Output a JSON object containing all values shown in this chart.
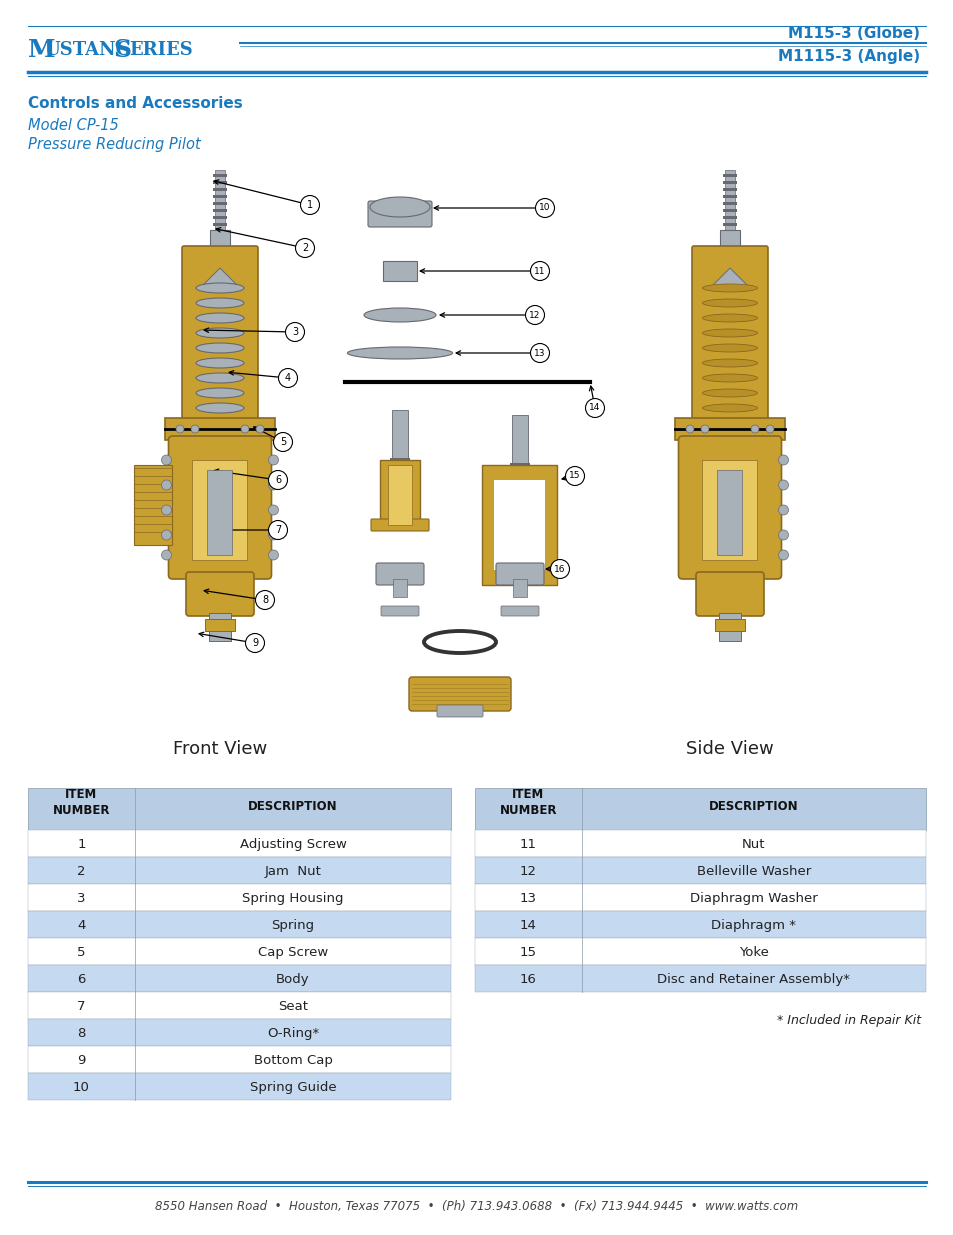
{
  "page_bg": "#ffffff",
  "header_line_color": "#1a7abf",
  "brand_title_color": "#1a7abf",
  "model_right_line1": "M115-3 (Globe)",
  "model_right_line2": "M1115-3 (Angle)",
  "model_right_color": "#1a7abf",
  "section_title": "Controls and Accessories",
  "section_title_color": "#1a7abf",
  "model_line1": "Model CP-15",
  "model_line2": "Pressure Reducing Pilot",
  "model_text_color": "#1a7abf",
  "front_view_label": "Front View",
  "side_view_label": "Side View",
  "label_color": "#222222",
  "table_header_bg": "#b8cce4",
  "table_row_bg_alt": "#c5d9f1",
  "table_row_bg_plain": "#ffffff",
  "table_border_color": "#8899aa",
  "table_text_color": "#222222",
  "left_items": [
    {
      "num": "1",
      "desc": "Adjusting Screw"
    },
    {
      "num": "2",
      "desc": "Jam  Nut"
    },
    {
      "num": "3",
      "desc": "Spring Housing"
    },
    {
      "num": "4",
      "desc": "Spring"
    },
    {
      "num": "5",
      "desc": "Cap Screw"
    },
    {
      "num": "6",
      "desc": "Body"
    },
    {
      "num": "7",
      "desc": "Seat"
    },
    {
      "num": "8",
      "desc": "O-Ring*"
    },
    {
      "num": "9",
      "desc": "Bottom Cap"
    },
    {
      "num": "10",
      "desc": "Spring Guide"
    }
  ],
  "right_items": [
    {
      "num": "11",
      "desc": "Nut"
    },
    {
      "num": "12",
      "desc": "Belleville Washer"
    },
    {
      "num": "13",
      "desc": "Diaphragm Washer"
    },
    {
      "num": "14",
      "desc": "Diaphragm *"
    },
    {
      "num": "15",
      "desc": "Yoke"
    },
    {
      "num": "16",
      "desc": "Disc and Retainer Assembly*"
    }
  ],
  "repair_kit_note": "* Included in Repair Kit",
  "footer_text": "8550 Hansen Road  •  Houston, Texas 77075  •  (Ph) 713.943.0688  •  (Fx) 713.944.9445  •  www.watts.com",
  "footer_color": "#444444",
  "footer_line_color": "#1a7abf",
  "brass": "#c8a030",
  "brass_dark": "#8a6820",
  "brass_light": "#e8c860",
  "brass_mid": "#b89028",
  "silver": "#a8b0b8",
  "silver_dark": "#686870",
  "silver_light": "#d0d8e0"
}
